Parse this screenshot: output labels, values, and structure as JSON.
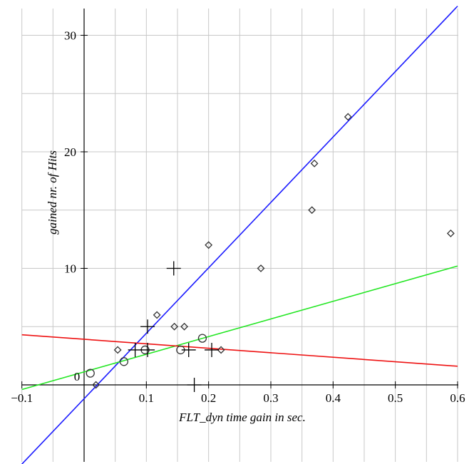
{
  "chart_data": {
    "type": "scatter",
    "title": "",
    "xlabel": "FLT_dyn  time gain in sec.",
    "ylabel": "gained nr. of Hits",
    "xlim": [
      -0.1,
      0.6
    ],
    "ylim": [
      -6.8,
      32.5
    ],
    "x_ticks": [
      -0.1,
      0.1,
      0.2,
      0.3,
      0.4,
      0.5,
      0.6
    ],
    "x_tick_labels": [
      "−0.1",
      "0.1",
      "0.2",
      "0.3",
      "0.4",
      "0.5",
      "0.6"
    ],
    "origin_label": "0",
    "y_ticks": [
      10,
      20,
      30
    ],
    "y_tick_labels": [
      "10",
      "20",
      "30"
    ],
    "grid_x": [
      -0.1,
      -0.05,
      0.05,
      0.1,
      0.15,
      0.2,
      0.25,
      0.3,
      0.35,
      0.4,
      0.45,
      0.5,
      0.55,
      0.6
    ],
    "grid_y": [
      5,
      10,
      15,
      20,
      25,
      30
    ],
    "grid": true,
    "legend": "none",
    "colors": {
      "diamond": "#333333",
      "circle": "#333333",
      "plus": "#000000",
      "blue_line": "#1a1aff",
      "green_line": "#22e622",
      "red_line": "#ee1111"
    },
    "series": [
      {
        "marker": "diamond",
        "points": [
          [
            0.054,
            3
          ],
          [
            0.117,
            6
          ],
          [
            0.145,
            5
          ],
          [
            0.161,
            5
          ],
          [
            0.2,
            12
          ],
          [
            0.22,
            3
          ],
          [
            0.284,
            10
          ],
          [
            0.366,
            15
          ],
          [
            0.37,
            19
          ],
          [
            0.424,
            23
          ],
          [
            0.589,
            13
          ]
        ]
      },
      {
        "marker": "circle",
        "points": [
          [
            0.01,
            1
          ],
          [
            0.064,
            2
          ],
          [
            0.098,
            3
          ],
          [
            0.155,
            3
          ],
          [
            0.19,
            4
          ]
        ]
      },
      {
        "marker": "plus",
        "points": [
          [
            0.082,
            3
          ],
          [
            0.102,
            5
          ],
          [
            0.102,
            3
          ],
          [
            0.144,
            10
          ],
          [
            0.168,
            3
          ],
          [
            0.177,
            0
          ],
          [
            0.205,
            3
          ]
        ]
      },
      {
        "marker": "diamond",
        "points": [
          [
            0.019,
            0
          ]
        ]
      }
    ],
    "lines": [
      {
        "color": "blue",
        "points": [
          [
            -0.1,
            -6.8
          ],
          [
            0.6,
            32.5
          ]
        ]
      },
      {
        "color": "green",
        "points": [
          [
            -0.1,
            -0.4
          ],
          [
            0.6,
            10.2
          ]
        ]
      },
      {
        "color": "red",
        "points": [
          [
            -0.1,
            4.3
          ],
          [
            0.6,
            1.6
          ]
        ]
      }
    ]
  }
}
